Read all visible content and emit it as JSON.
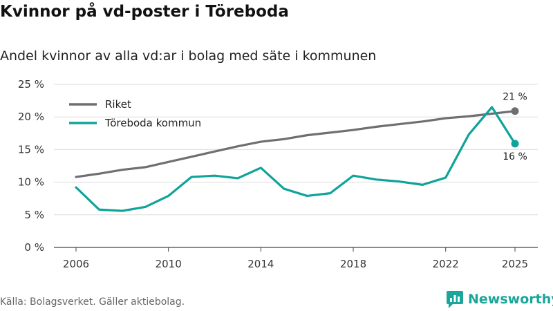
{
  "title": "Kvinnor på vd-poster i Töreboda",
  "subtitle": "Andel kvinnor av alla vd:ar i bolag med säte i kommunen",
  "source": "Källa: Bolagsverket. Gäller aktiebolag.",
  "brand": "Newsworthy",
  "chart_data": {
    "type": "line",
    "x": [
      2006,
      2007,
      2008,
      2009,
      2010,
      2011,
      2012,
      2013,
      2014,
      2015,
      2016,
      2017,
      2018,
      2019,
      2020,
      2021,
      2022,
      2023,
      2024,
      2025
    ],
    "series": [
      {
        "name": "Riket",
        "color": "#6e6e73",
        "values": [
          10.8,
          11.3,
          11.9,
          12.3,
          13.1,
          13.9,
          14.7,
          15.5,
          16.2,
          16.6,
          17.2,
          17.6,
          18.0,
          18.5,
          18.9,
          19.3,
          19.8,
          20.1,
          20.5,
          20.9
        ],
        "end_label": "21 %"
      },
      {
        "name": "Töreboda kommun",
        "color": "#0fa39a",
        "values": [
          9.2,
          5.8,
          5.6,
          6.2,
          7.9,
          10.8,
          11.0,
          10.6,
          12.2,
          9.0,
          7.9,
          8.3,
          11.0,
          10.4,
          10.1,
          9.6,
          10.7,
          17.3,
          21.5,
          15.9
        ],
        "end_label": "16 %"
      }
    ],
    "y_ticks": [
      "0 %",
      "5 %",
      "10 %",
      "15 %",
      "20 %",
      "25 %"
    ],
    "y_tick_values": [
      0,
      5,
      10,
      15,
      20,
      25
    ],
    "x_ticks": [
      "2006",
      "2010",
      "2014",
      "2018",
      "2022",
      "2025"
    ],
    "x_tick_values": [
      2006,
      2010,
      2014,
      2018,
      2022,
      2025
    ],
    "ylim": [
      0,
      25
    ],
    "xlim": [
      2006,
      2025
    ],
    "xlabel": "",
    "ylabel": "",
    "legend_position": "top-left",
    "grid": true
  }
}
